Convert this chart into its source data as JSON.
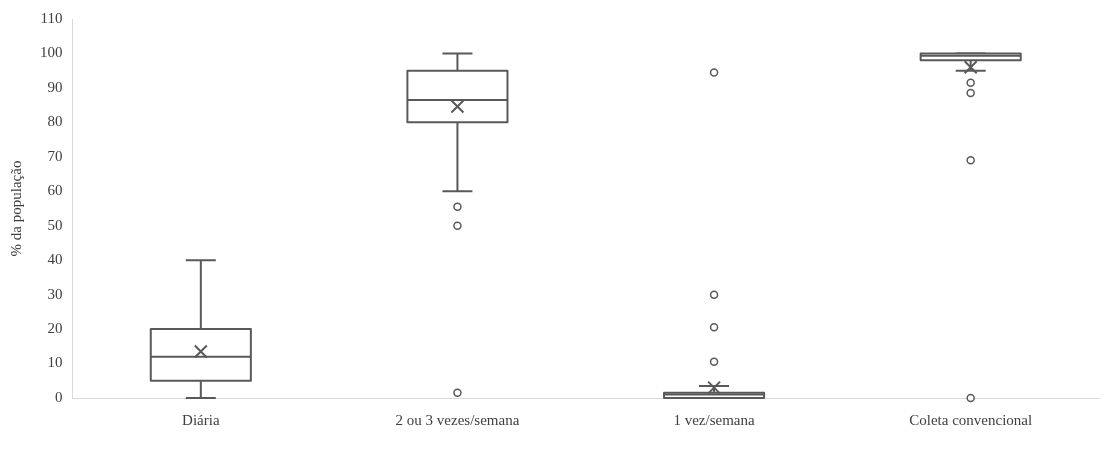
{
  "chart_data": {
    "type": "box",
    "ylabel": "% da população",
    "categories": [
      "Diária",
      "2 ou 3 vezes/semana",
      "1 vez/semana",
      "Coleta convencional"
    ],
    "color": "#595959",
    "boxes": [
      {
        "low": 0,
        "q1": 5,
        "median": 12,
        "q3": 20,
        "high": 40,
        "mean": 13.5
      },
      {
        "low": 60,
        "q1": 80,
        "median": 86.5,
        "q3": 95,
        "high": 100,
        "mean": 84.6,
        "outliers": [
          55.5,
          50,
          1.5
        ]
      },
      {
        "low": 0,
        "q1": 0,
        "median": 1,
        "q3": 1.5,
        "high": 3.5,
        "mean": 3,
        "outliers": [
          94.5,
          30,
          20.5,
          10.5
        ]
      },
      {
        "low": 95,
        "q1": 98,
        "median": 99.3,
        "q3": 100,
        "high": 100,
        "mean": 96,
        "outliers": [
          91.5,
          88.5,
          69,
          0
        ]
      }
    ],
    "ylim": [
      0,
      110
    ],
    "yticks": [
      0,
      10,
      20,
      30,
      40,
      50,
      60,
      70,
      80,
      90,
      100,
      110
    ],
    "grid": false,
    "legend": false
  }
}
